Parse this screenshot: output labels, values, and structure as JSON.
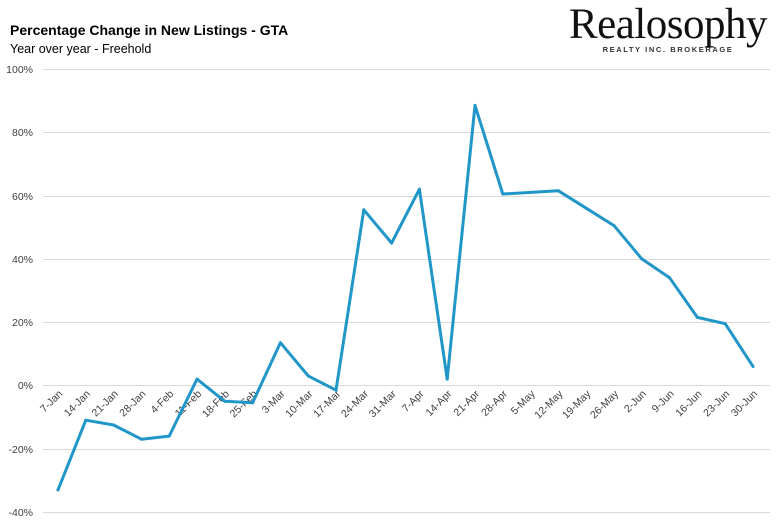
{
  "header": {
    "title": "Percentage Change in New Listings - GTA",
    "subtitle": "Year over year - Freehold"
  },
  "logo": {
    "word": "Realosophy",
    "tagline": "REALTY INC. BROKERAGE"
  },
  "colors": {
    "line": "#2196c8",
    "grid": "#d9d9d9",
    "axis_text": "#404040"
  },
  "chart_data": {
    "type": "line",
    "title": "Percentage Change in New Listings - GTA",
    "subtitle": "Year over year - Freehold",
    "xlabel": "",
    "ylabel": "",
    "grid": true,
    "legend": "none",
    "categories": [
      "7-Jan",
      "14-Jan",
      "21-Jan",
      "28-Jan",
      "4-Feb",
      "11-Feb",
      "18-Feb",
      "25-Feb",
      "3-Mar",
      "10-Mar",
      "17-Mar",
      "24-Mar",
      "31-Mar",
      "7-Apr",
      "14-Apr",
      "21-Apr",
      "28-Apr",
      "5-May",
      "12-May",
      "19-May",
      "26-May",
      "2-Jun",
      "9-Jun",
      "16-Jun",
      "23-Jun",
      "30-Jun"
    ],
    "values": [
      -33,
      -11,
      -12.5,
      -17,
      -16,
      2,
      -5,
      -5.5,
      13.5,
      3,
      -1.5,
      55.5,
      45,
      62,
      2,
      88.5,
      60.5,
      61,
      61.5,
      56,
      50.5,
      40,
      34,
      21.5,
      19.5,
      6
    ],
    "ylim": [
      -40,
      100
    ],
    "yticks": [
      -40,
      -20,
      0,
      20,
      40,
      60,
      80,
      100
    ],
    "ytick_labels": [
      "-40%",
      "-20%",
      "0%",
      "20%",
      "40%",
      "60%",
      "80%",
      "100%"
    ]
  }
}
